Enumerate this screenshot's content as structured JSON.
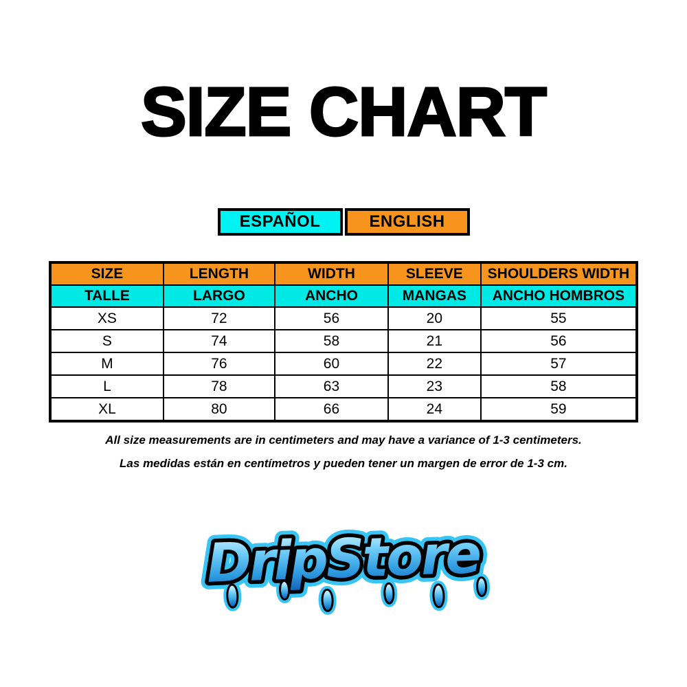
{
  "title": "SIZE CHART",
  "language_tabs": [
    {
      "id": "espanol",
      "label": "ESPAÑOL"
    },
    {
      "id": "english",
      "label": "ENGLISH"
    }
  ],
  "table": {
    "header_en": [
      "SIZE",
      "LENGTH",
      "WIDTH",
      "SLEEVE",
      "SHOULDERS WIDTH"
    ],
    "header_es": [
      "TALLE",
      "LARGO",
      "ANCHO",
      "MANGAS",
      "ANCHO HOMBROS"
    ],
    "rows": [
      [
        "XS",
        "72",
        "56",
        "20",
        "55"
      ],
      [
        "S",
        "74",
        "58",
        "21",
        "56"
      ],
      [
        "M",
        "76",
        "60",
        "22",
        "57"
      ],
      [
        "L",
        "78",
        "63",
        "23",
        "58"
      ],
      [
        "XL",
        "80",
        "66",
        "24",
        "59"
      ]
    ]
  },
  "notes": {
    "english": "All size measurements are in centimeters and may have a variance of 1-3 centimeters.",
    "spanish": "Las medidas están en centímetros y pueden tener un margen de error de 1-3 cm."
  },
  "logo": {
    "text": "DripStore"
  },
  "colors": {
    "orange": "#F7941E",
    "cyanTab": "#00F2F2",
    "cyanTable": "#00E9E4",
    "ink": "#000000",
    "logoGlow": "#38C4F4"
  },
  "chart_data": {
    "type": "table",
    "title": "SIZE CHART",
    "units": "centimeters",
    "variance_note": "1-3 centimeters",
    "columns": [
      {
        "en": "SIZE",
        "es": "TALLE"
      },
      {
        "en": "LENGTH",
        "es": "LARGO"
      },
      {
        "en": "WIDTH",
        "es": "ANCHO"
      },
      {
        "en": "SLEEVE",
        "es": "MANGAS"
      },
      {
        "en": "SHOULDERS WIDTH",
        "es": "ANCHO HOMBROS"
      }
    ],
    "rows": [
      {
        "size": "XS",
        "length": 72,
        "width": 56,
        "sleeve": 20,
        "shoulders_width": 55
      },
      {
        "size": "S",
        "length": 74,
        "width": 58,
        "sleeve": 21,
        "shoulders_width": 56
      },
      {
        "size": "M",
        "length": 76,
        "width": 60,
        "sleeve": 22,
        "shoulders_width": 57
      },
      {
        "size": "L",
        "length": 78,
        "width": 63,
        "sleeve": 23,
        "shoulders_width": 58
      },
      {
        "size": "XL",
        "length": 80,
        "width": 66,
        "sleeve": 24,
        "shoulders_width": 59
      }
    ]
  }
}
